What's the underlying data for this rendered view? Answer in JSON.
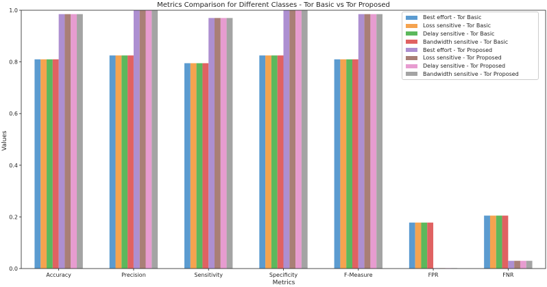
{
  "chart_data": {
    "type": "bar",
    "title": "Metrics Comparison for Different Classes - Tor Basic vs Tor Proposed",
    "xlabel": "Metrics",
    "ylabel": "Values",
    "ylim": [
      0,
      1.0
    ],
    "yticks": [
      "0.0",
      "0.2",
      "0.4",
      "0.6",
      "0.8",
      "1.0"
    ],
    "ytick_values": [
      0,
      0.2,
      0.4,
      0.6,
      0.8,
      1.0
    ],
    "categories": [
      "Accuracy",
      "Precision",
      "Sensitivity",
      "Specificity",
      "F-Measure",
      "FPR",
      "FNR"
    ],
    "legend_position": "top-right",
    "series": [
      {
        "name": "Best effort - Tor Basic",
        "color": "#5b9bd0",
        "values": [
          0.81,
          0.825,
          0.795,
          0.825,
          0.81,
          0.178,
          0.205
        ]
      },
      {
        "name": "Loss sensitive - Tor Basic",
        "color": "#f5a34f",
        "values": [
          0.81,
          0.825,
          0.795,
          0.825,
          0.81,
          0.178,
          0.205
        ]
      },
      {
        "name": "Delay sensitive - Tor Basic",
        "color": "#5cb85c",
        "values": [
          0.81,
          0.825,
          0.795,
          0.825,
          0.81,
          0.178,
          0.205
        ]
      },
      {
        "name": "Bandwidth sensitive - Tor Basic",
        "color": "#e06262",
        "values": [
          0.81,
          0.825,
          0.795,
          0.825,
          0.81,
          0.178,
          0.205
        ]
      },
      {
        "name": "Best effort - Tor Proposed",
        "color": "#ad8fd1",
        "values": [
          0.985,
          1.0,
          0.97,
          1.0,
          0.985,
          0.001,
          0.03
        ]
      },
      {
        "name": "Loss sensitive - Tor Proposed",
        "color": "#a97f76",
        "values": [
          0.985,
          1.0,
          0.97,
          1.0,
          0.985,
          0.001,
          0.03
        ]
      },
      {
        "name": "Delay sensitive - Tor Proposed",
        "color": "#e79cd0",
        "values": [
          0.985,
          1.0,
          0.97,
          1.0,
          0.985,
          0.001,
          0.03
        ]
      },
      {
        "name": "Bandwidth sensitive - Tor Proposed",
        "color": "#a4a4a4",
        "values": [
          0.985,
          1.0,
          0.97,
          1.0,
          0.985,
          0.001,
          0.03
        ]
      }
    ]
  }
}
